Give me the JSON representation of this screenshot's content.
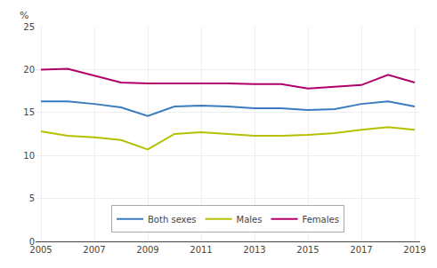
{
  "chart_data": {
    "type": "line",
    "ylabel": "%",
    "x": [
      2005,
      2006,
      2007,
      2008,
      2009,
      2010,
      2011,
      2012,
      2013,
      2014,
      2015,
      2016,
      2017,
      2018,
      2019
    ],
    "series": [
      {
        "name": "Both sexes",
        "color": "#3a7bbf",
        "values": [
          16.3,
          16.3,
          16.0,
          15.6,
          14.6,
          15.7,
          15.8,
          15.7,
          15.5,
          15.5,
          15.3,
          15.4,
          16.0,
          16.3,
          15.7
        ]
      },
      {
        "name": "Males",
        "color": "#b5c000",
        "values": [
          12.8,
          12.3,
          12.1,
          11.8,
          10.7,
          12.5,
          12.7,
          12.5,
          12.3,
          12.3,
          12.4,
          12.6,
          13.0,
          13.3,
          13.0
        ]
      },
      {
        "name": "Females",
        "color": "#b0006a",
        "values": [
          20.0,
          20.1,
          19.3,
          18.5,
          18.4,
          18.4,
          18.4,
          18.4,
          18.3,
          18.3,
          17.8,
          18.0,
          18.2,
          19.4,
          18.5
        ]
      }
    ],
    "xlim": [
      2004.8,
      2019.2
    ],
    "xticks": [
      2005,
      2007,
      2009,
      2011,
      2013,
      2015,
      2017,
      2019
    ],
    "ylim": [
      0,
      25
    ],
    "yticks": [
      0,
      5,
      10,
      15,
      20,
      25
    ],
    "grid": true,
    "legend": "lower center"
  }
}
